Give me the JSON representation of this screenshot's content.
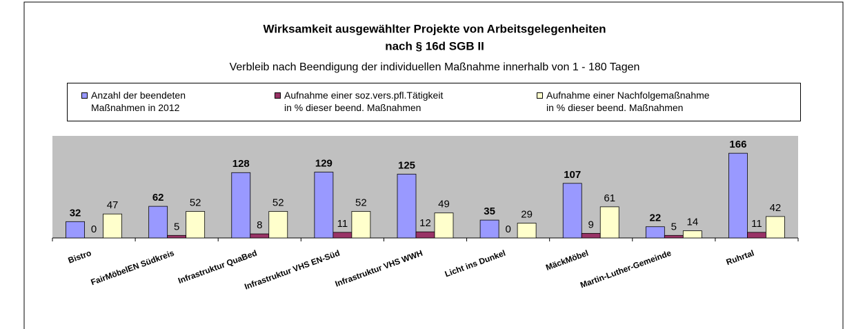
{
  "chart_data": {
    "type": "bar",
    "title": [
      "Wirksamkeit ausgewählter Projekte von Arbeitsgelegenheiten",
      "nach § 16d SGB II"
    ],
    "subtitle": "Verbleib nach Beendigung der individuellen Maßnahme innerhalb von 1 - 180 Tagen",
    "categories": [
      "Bistro",
      "FairMöbelEN Südkreis",
      "Infrastruktur QuaBed",
      "Infrastruktur VHS EN-Süd",
      "Infrastruktur VHS WWH",
      "Licht ins Dunkel",
      "MäckMöbel",
      "Martin-Luther-Gemeinde",
      "Ruhrtal"
    ],
    "series": [
      {
        "name": "Anzahl der beendeten\nMaßnahmen in 2012",
        "color": "#9999ff",
        "values": [
          32,
          62,
          128,
          129,
          125,
          35,
          107,
          22,
          166
        ]
      },
      {
        "name": "Aufnahme einer soz.vers.pfl.Tätigkeit\nin % dieser beend. Maßnahmen",
        "color": "#993366",
        "values": [
          0,
          5,
          8,
          11,
          12,
          0,
          9,
          5,
          11
        ]
      },
      {
        "name": "Aufnahme einer Nachfolgemaßnahme\nin % dieser beend. Maßnahmen",
        "color": "#ffffcc",
        "values": [
          47,
          52,
          52,
          52,
          49,
          29,
          61,
          14,
          42
        ]
      }
    ],
    "ylim": [
      0,
      200
    ],
    "legend": "top",
    "plot_background": "#c0c0c0"
  }
}
